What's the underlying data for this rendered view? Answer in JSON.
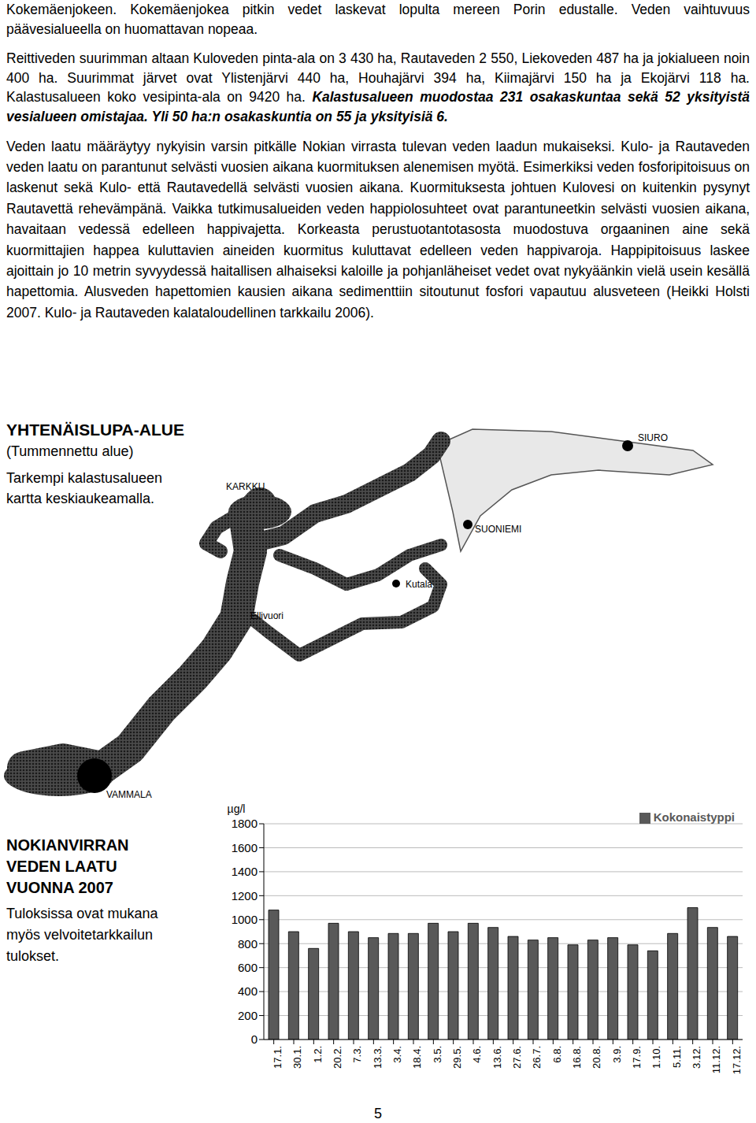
{
  "paragraphs": [
    {
      "text": "Kokemäenjokeen. Kokemäenjokea pitkin vedet laskevat lopulta mereen Porin edustalle. Veden vaihtuvuus päävesialueella on huomattavan nopeaa."
    },
    {
      "text": "Reittiveden suurimman altaan Kuloveden pinta-ala on 3 430 ha, Rautaveden 2 550, Liekoveden 487 ha ja jokialueen noin 400 ha. Suurimmat järvet ovat Ylistenjärvi 440 ha, Houhajärvi 394 ha, Kiimajärvi 150 ha ja Ekojärvi 118 ha. Kalastusalueen koko vesipinta-ala on 9420 ha.",
      "emphasized": "Kalastusalueen muodostaa 231 osakaskuntaa sekä 52 yksityistä vesialueen omistajaa. Yli 50 ha:n osakaskuntia on 55 ja yksityisiä 6."
    },
    {
      "text": "Veden laatu määräytyy nykyisin varsin pitkälle Nokian virrasta tulevan veden laadun mukaiseksi. Kulo- ja Rautaveden veden laatu on parantunut selvästi vuosien aikana kuormituksen alenemisen myötä. Esimerkiksi veden fosforipitoisuus on laskenut sekä Kulo- että Rautavedellä selvästi vuosien aikana. Kuormituksesta johtuen Kulovesi on kuitenkin pysynyt Rautavettä rehevämpänä. Vaikka tutkimusalueiden veden happiolosuhteet ovat parantuneetkin selvästi vuosien aikana, havaitaan vedessä edelleen happivajetta. Korkeasta perustuotantotasosta muodostuva orgaaninen aine sekä kuormittajien happea kuluttavien aineiden kuormitus kuluttavat edelleen veden happivaroja. Happipitoisuus laskee ajoittain jo 10 metrin syvyydessä haitallisen alhaiseksi kaloille ja pohjanläheiset vedet ovat nykyäänkin vielä usein kesällä hapettomia. Alusveden hapettomien kausien aikana sedimenttiin sitoutunut fosfori vapautuu alusveteen (Heikki Holsti 2007. Kulo- ja Rautaveden kalataloudellinen tarkkailu 2006)."
    }
  ],
  "map": {
    "title": "YHTENÄISLUPA-ALUE",
    "subtitle": "(Tummennettu alue)",
    "note": "Tarkempi kalastusalueen kartta keskiaukeamalla.",
    "places": [
      "SIURO",
      "KARKKU",
      "SUONIEMI",
      "Kutala",
      "Ellivuori",
      "VAMMALA"
    ]
  },
  "chart_section": {
    "title": "NOKIANVIRRAN VEDEN LAATU VUONNA 2007",
    "note": "Tuloksissa ovat mukana myös velvoitetarkkailun tulokset."
  },
  "chart_data": {
    "type": "bar",
    "y_label": "µg/l",
    "categories": [
      "17.1.",
      "30.1.",
      "1.2.",
      "20.2.",
      "7.3.",
      "13.3.",
      "3.4.",
      "18.4.",
      "3.5.",
      "29.5.",
      "4.6.",
      "13.6.",
      "27.6.",
      "26.7.",
      "6.8.",
      "16.8.",
      "20.8.",
      "3.9.",
      "17.9.",
      "1.10.",
      "5.11.",
      "3.12.",
      "11.12.",
      "17.12."
    ],
    "series": [
      {
        "name": "Kokonaistyppi",
        "color": "#595959",
        "values": [
          1080,
          900,
          760,
          970,
          900,
          850,
          885,
          885,
          970,
          900,
          970,
          935,
          860,
          830,
          850,
          790,
          830,
          850,
          790,
          740,
          885,
          1100,
          935,
          860
        ]
      }
    ],
    "ylim": [
      0,
      1800
    ],
    "yticks": [
      0,
      200,
      400,
      600,
      800,
      1000,
      1200,
      1400,
      1600,
      1800
    ],
    "grid": true,
    "legend": "top-right"
  },
  "page_number": "5"
}
